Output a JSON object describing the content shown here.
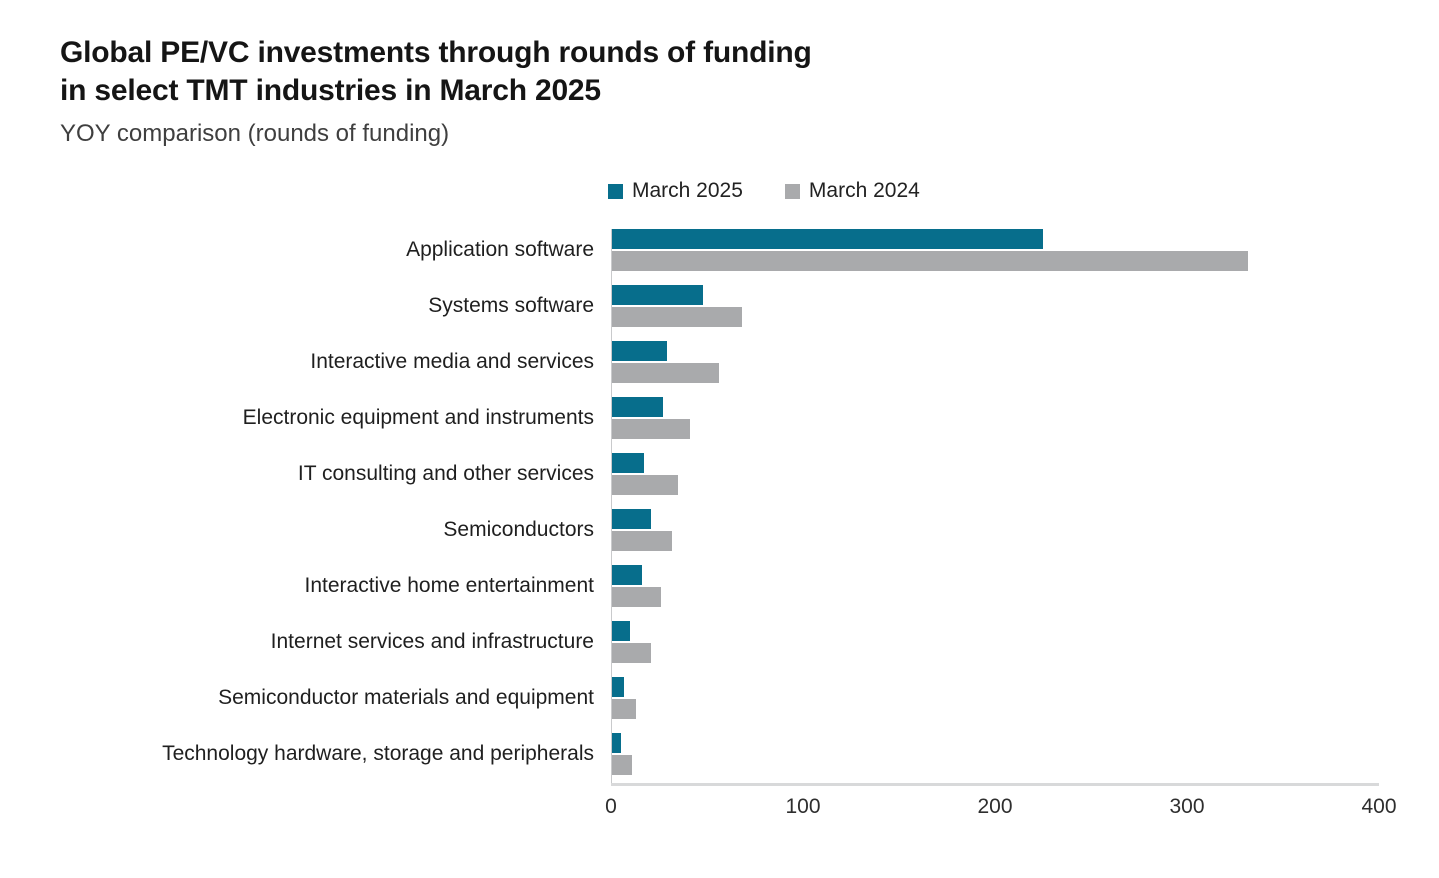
{
  "header": {
    "title_line1": "Global PE/VC investments through rounds of funding",
    "title_line2": "in select TMT industries in March 2025",
    "subtitle": "YOY comparison (rounds of funding)"
  },
  "legend": {
    "items": [
      {
        "label": "March 2025",
        "color": "#076e8c"
      },
      {
        "label": "March 2024",
        "color": "#a9aaac"
      }
    ]
  },
  "chart_data": {
    "type": "bar",
    "orientation": "horizontal",
    "title": "Global PE/VC investments through rounds of funding in select TMT industries in March 2025",
    "subtitle": "YOY comparison (rounds of funding)",
    "categories": [
      "Application software",
      "Systems software",
      "Interactive media and services",
      "Electronic equipment and instruments",
      "IT consulting and other services",
      "Semiconductors",
      "Interactive home entertainment",
      "Internet services and infrastructure",
      "Semiconductor materials and equipment",
      "Technology hardware, storage and peripherals"
    ],
    "series": [
      {
        "name": "March 2025",
        "color": "#076e8c",
        "values": [
          225,
          48,
          29,
          27,
          17,
          21,
          16,
          10,
          7,
          5
        ]
      },
      {
        "name": "March 2024",
        "color": "#a9aaac",
        "values": [
          332,
          68,
          56,
          41,
          35,
          32,
          26,
          21,
          13,
          11
        ]
      }
    ],
    "xlabel": "",
    "ylabel": "",
    "xlim": [
      0,
      400
    ],
    "x_ticks": [
      0,
      100,
      200,
      300,
      400
    ],
    "grid": false,
    "legend_position": "top",
    "axis_line_color": "#d8d9da"
  }
}
